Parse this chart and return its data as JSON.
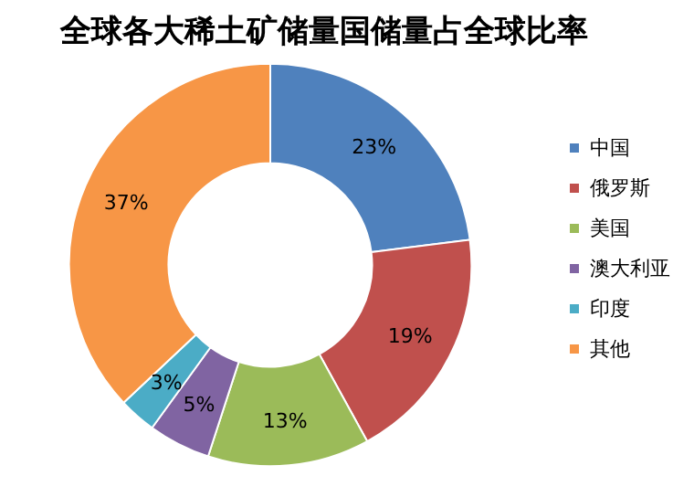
{
  "chart_data": {
    "type": "donut",
    "title": "全球各大稀土矿储量国储量占全球比率",
    "categories": [
      "中国",
      "俄罗斯",
      "美国",
      "澳大利亚",
      "印度",
      "其他"
    ],
    "values": [
      23,
      19,
      13,
      5,
      3,
      37
    ],
    "colors": [
      "#4f81bd",
      "#c0504d",
      "#9bbb59",
      "#8064a2",
      "#4bacc6",
      "#f79646"
    ],
    "value_labels": [
      "23%",
      "19%",
      "13%",
      "5%",
      "3%",
      "37%"
    ],
    "legend": "right"
  }
}
